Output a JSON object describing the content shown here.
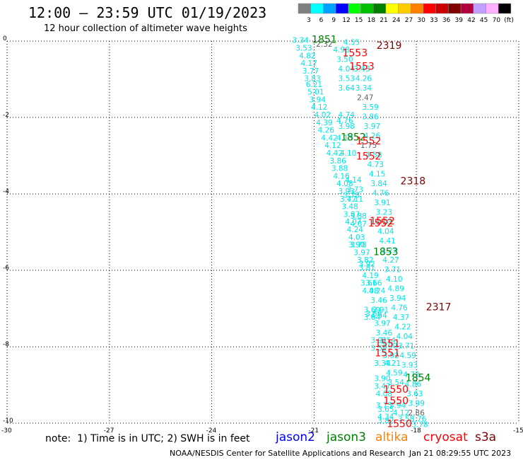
{
  "header": {
    "title": "12:00 – 23:59 UTC 01/19/2023",
    "subtitle": "12 hour collection of altimeter wave heights"
  },
  "scale": {
    "labels": [
      "3",
      "6",
      "9",
      "12",
      "15",
      "18",
      "21",
      "24",
      "27",
      "30",
      "33",
      "36",
      "39",
      "42",
      "45",
      "70",
      "(ft)"
    ],
    "colors": [
      "#808080",
      "#00ffff",
      "#00a0ff",
      "#0000ff",
      "#00ff00",
      "#00c000",
      "#008000",
      "#ffff00",
      "#ffcc00",
      "#ff8000",
      "#ff0000",
      "#cc0000",
      "#800000",
      "#b00040",
      "#c0a0ff",
      "#ffb0ff",
      "#000000"
    ]
  },
  "axes": {
    "x_ticks": [
      "-30",
      "-27",
      "-24",
      "-21",
      "-18",
      "-15"
    ],
    "y_ticks": [
      "0",
      "-2",
      "-4",
      "-6",
      "-8",
      "-10"
    ]
  },
  "chart_data": {
    "type": "scatter",
    "xlim": [
      -30,
      -15
    ],
    "ylim": [
      -10,
      0
    ],
    "grid": true,
    "points": [
      {
        "x": -21.4,
        "y": -0.05,
        "v": "3.34",
        "c": "#00e5e5"
      },
      {
        "x": -21.3,
        "y": -0.25,
        "v": "3.53",
        "c": "#00e5e5"
      },
      {
        "x": -21.2,
        "y": -0.45,
        "v": "4.82",
        "c": "#00e5e5"
      },
      {
        "x": -21.15,
        "y": -0.65,
        "v": "4.17",
        "c": "#00e5e5"
      },
      {
        "x": -21.1,
        "y": -0.85,
        "v": "3.77",
        "c": "#00e5e5"
      },
      {
        "x": -21.05,
        "y": -1.05,
        "v": "3.83",
        "c": "#00e5e5"
      },
      {
        "x": -21.0,
        "y": -1.2,
        "v": "6.21",
        "c": "#00e5e5"
      },
      {
        "x": -20.95,
        "y": -1.4,
        "v": "5.01",
        "c": "#00e5e5"
      },
      {
        "x": -20.9,
        "y": -1.6,
        "v": "3.94",
        "c": "#00e5e5"
      },
      {
        "x": -20.85,
        "y": -1.8,
        "v": "4.12",
        "c": "#00e5e5"
      },
      {
        "x": -20.75,
        "y": -2.0,
        "v": "4.02",
        "c": "#00e5e5"
      },
      {
        "x": -20.7,
        "y": -2.2,
        "v": "4.39",
        "c": "#00e5e5"
      },
      {
        "x": -20.65,
        "y": -2.4,
        "v": "4.26",
        "c": "#00e5e5"
      },
      {
        "x": -20.55,
        "y": -2.6,
        "v": "4.42",
        "c": "#00e5e5"
      },
      {
        "x": -20.45,
        "y": -2.8,
        "v": "4.12",
        "c": "#00e5e5"
      },
      {
        "x": -20.4,
        "y": -3.0,
        "v": "4.42",
        "c": "#00e5e5"
      },
      {
        "x": -20.3,
        "y": -3.2,
        "v": "3.86",
        "c": "#00e5e5"
      },
      {
        "x": -20.25,
        "y": -3.4,
        "v": "3.88",
        "c": "#00e5e5"
      },
      {
        "x": -20.2,
        "y": -3.6,
        "v": "4.16",
        "c": "#00e5e5"
      },
      {
        "x": -20.1,
        "y": -3.8,
        "v": "4.08",
        "c": "#00e5e5"
      },
      {
        "x": -20.05,
        "y": -4.0,
        "v": "3.93",
        "c": "#00e5e5"
      },
      {
        "x": -20.0,
        "y": -4.2,
        "v": "3.77",
        "c": "#00e5e5"
      },
      {
        "x": -19.95,
        "y": -4.4,
        "v": "3.48",
        "c": "#00e5e5"
      },
      {
        "x": -19.9,
        "y": -4.6,
        "v": "3.87",
        "c": "#00e5e5"
      },
      {
        "x": -19.85,
        "y": -4.8,
        "v": "4.07",
        "c": "#00e5e5"
      },
      {
        "x": -19.8,
        "y": -5.0,
        "v": "4.24",
        "c": "#00e5e5"
      },
      {
        "x": -19.75,
        "y": -5.2,
        "v": "4.03",
        "c": "#00e5e5"
      },
      {
        "x": -19.7,
        "y": -5.4,
        "v": "3.78",
        "c": "#00e5e5"
      },
      {
        "x": -19.6,
        "y": -5.6,
        "v": "3.97",
        "c": "#00e5e5"
      },
      {
        "x": -19.5,
        "y": -5.8,
        "v": "3.82",
        "c": "#00e5e5"
      },
      {
        "x": -19.45,
        "y": -6.0,
        "v": "3.81",
        "c": "#00e5e5"
      },
      {
        "x": -19.35,
        "y": -6.2,
        "v": "4.19",
        "c": "#00e5e5"
      },
      {
        "x": -19.4,
        "y": -6.4,
        "v": "3.61",
        "c": "#00e5e5"
      },
      {
        "x": -19.35,
        "y": -6.6,
        "v": "4.08",
        "c": "#00e5e5"
      },
      {
        "x": -19.3,
        "y": -7.1,
        "v": "3.69",
        "c": "#00e5e5"
      },
      {
        "x": -19.3,
        "y": -7.3,
        "v": "3.64",
        "c": "#00e5e5"
      },
      {
        "x": -19.1,
        "y": -7.9,
        "v": "3.91",
        "c": "#00e5e5"
      },
      {
        "x": -19.1,
        "y": -8.1,
        "v": "3.52",
        "c": "#00e5e5"
      },
      {
        "x": -19.0,
        "y": -8.5,
        "v": "3.34",
        "c": "#00e5e5"
      },
      {
        "x": -19.0,
        "y": -8.9,
        "v": "3.90",
        "c": "#00e5e5"
      },
      {
        "x": -19.0,
        "y": -9.1,
        "v": "3.47",
        "c": "#00e5e5"
      },
      {
        "x": -18.95,
        "y": -9.3,
        "v": "4.08",
        "c": "#00e5e5"
      },
      {
        "x": -18.95,
        "y": -9.6,
        "v": "3.75",
        "c": "#00e5e5"
      },
      {
        "x": -18.9,
        "y": -9.7,
        "v": "3.65",
        "c": "#00e5e5"
      },
      {
        "x": -18.9,
        "y": -9.9,
        "v": "4.34",
        "c": "#00e5e5"
      },
      {
        "x": -18.9,
        "y": -10.0,
        "v": "3.82",
        "c": "#00e5e5"
      },
      {
        "x": -19.9,
        "y": -0.1,
        "v": "4.55",
        "c": "#00e5e5"
      },
      {
        "x": -20.2,
        "y": -0.3,
        "v": "4.98",
        "c": "#00e5e5"
      },
      {
        "x": -20.1,
        "y": -0.55,
        "v": "3.50",
        "c": "#00e5e5"
      },
      {
        "x": -20.05,
        "y": -0.8,
        "v": "4.04",
        "c": "#00e5e5"
      },
      {
        "x": -20.05,
        "y": -1.05,
        "v": "3.53",
        "c": "#00e5e5"
      },
      {
        "x": -20.05,
        "y": -1.3,
        "v": "3.64",
        "c": "#00e5e5"
      },
      {
        "x": -19.6,
        "y": -0.8,
        "v": "3.43",
        "c": "#00e5e5"
      },
      {
        "x": -19.55,
        "y": -1.05,
        "v": "4.26",
        "c": "#00e5e5"
      },
      {
        "x": -19.55,
        "y": -1.3,
        "v": "3.34",
        "c": "#00e5e5"
      },
      {
        "x": -19.35,
        "y": -1.8,
        "v": "3.59",
        "c": "#00e5e5"
      },
      {
        "x": -19.35,
        "y": -2.05,
        "v": "3.86",
        "c": "#00e5e5"
      },
      {
        "x": -19.3,
        "y": -2.3,
        "v": "3.97",
        "c": "#00e5e5"
      },
      {
        "x": -19.3,
        "y": -2.55,
        "v": "4.26",
        "c": "#00e5e5"
      },
      {
        "x": -19.25,
        "y": -3.05,
        "v": "4.58",
        "c": "#00e5e5"
      },
      {
        "x": -19.2,
        "y": -3.3,
        "v": "4.73",
        "c": "#00e5e5"
      },
      {
        "x": -19.15,
        "y": -3.55,
        "v": "4.15",
        "c": "#00e5e5"
      },
      {
        "x": -19.1,
        "y": -3.8,
        "v": "3.84",
        "c": "#00e5e5"
      },
      {
        "x": -19.05,
        "y": -4.05,
        "v": "4.76",
        "c": "#00e5e5"
      },
      {
        "x": -19.0,
        "y": -4.3,
        "v": "3.91",
        "c": "#00e5e5"
      },
      {
        "x": -18.95,
        "y": -4.55,
        "v": "3.23",
        "c": "#00e5e5"
      },
      {
        "x": -18.95,
        "y": -4.8,
        "v": "4.03",
        "c": "#00e5e5"
      },
      {
        "x": -18.9,
        "y": -5.05,
        "v": "4.04",
        "c": "#00e5e5"
      },
      {
        "x": -18.85,
        "y": -5.3,
        "v": "4.41",
        "c": "#00e5e5"
      },
      {
        "x": -18.8,
        "y": -5.55,
        "v": "3.23",
        "c": "#00e5e5"
      },
      {
        "x": -18.75,
        "y": -5.8,
        "v": "4.27",
        "c": "#00e5e5"
      },
      {
        "x": -18.7,
        "y": -6.05,
        "v": "3.71",
        "c": "#00e5e5"
      },
      {
        "x": -18.65,
        "y": -6.3,
        "v": "4.10",
        "c": "#00e5e5"
      },
      {
        "x": -18.6,
        "y": -6.55,
        "v": "4.89",
        "c": "#00e5e5"
      },
      {
        "x": -18.55,
        "y": -6.8,
        "v": "3.94",
        "c": "#00e5e5"
      },
      {
        "x": -18.5,
        "y": -7.05,
        "v": "4.76",
        "c": "#00e5e5"
      },
      {
        "x": -18.45,
        "y": -7.3,
        "v": "4.37",
        "c": "#00e5e5"
      },
      {
        "x": -18.4,
        "y": -7.55,
        "v": "4.22",
        "c": "#00e5e5"
      },
      {
        "x": -18.35,
        "y": -7.8,
        "v": "4.04",
        "c": "#00e5e5"
      },
      {
        "x": -18.3,
        "y": -8.05,
        "v": "3.71",
        "c": "#00e5e5"
      },
      {
        "x": -18.25,
        "y": -8.3,
        "v": "4.59",
        "c": "#00e5e5"
      },
      {
        "x": -18.2,
        "y": -8.55,
        "v": "3.93",
        "c": "#00e5e5"
      },
      {
        "x": -18.15,
        "y": -8.8,
        "v": "4.73",
        "c": "#00e5e5"
      },
      {
        "x": -18.1,
        "y": -9.05,
        "v": "4.86",
        "c": "#00e5e5"
      },
      {
        "x": -18.05,
        "y": -9.3,
        "v": "3.63",
        "c": "#00e5e5"
      },
      {
        "x": -18.0,
        "y": -9.55,
        "v": "3.99",
        "c": "#00e5e5"
      },
      {
        "x": -17.95,
        "y": -9.95,
        "v": "3.76",
        "c": "#00e5e5"
      },
      {
        "x": -17.9,
        "y": -10.1,
        "v": "3.78",
        "c": "#00e5e5"
      },
      {
        "x": -20.05,
        "y": -2.0,
        "v": "4.74",
        "c": "#00e5e5"
      },
      {
        "x": -20.1,
        "y": -2.15,
        "v": "4.76",
        "c": "#00e5e5"
      },
      {
        "x": -20.05,
        "y": -2.3,
        "v": "3.98",
        "c": "#00e5e5"
      },
      {
        "x": -20.1,
        "y": -2.6,
        "v": "4.13",
        "c": "#00e5e5"
      },
      {
        "x": -20.0,
        "y": -3.0,
        "v": "4.10",
        "c": "#00e5e5"
      },
      {
        "x": -19.85,
        "y": -3.7,
        "v": "4.14",
        "c": "#00e5e5"
      },
      {
        "x": -19.8,
        "y": -3.95,
        "v": "3.73",
        "c": "#00e5e5"
      },
      {
        "x": -19.9,
        "y": -4.1,
        "v": "3.78",
        "c": "#00e5e5"
      },
      {
        "x": -19.8,
        "y": -4.2,
        "v": "4.11",
        "c": "#00e5e5"
      },
      {
        "x": -19.7,
        "y": -4.65,
        "v": "3.88",
        "c": "#00e5e5"
      },
      {
        "x": -19.7,
        "y": -4.85,
        "v": "4.07",
        "c": "#00e5e5"
      },
      {
        "x": -19.75,
        "y": -5.4,
        "v": "3.90",
        "c": "#00e5e5"
      },
      {
        "x": -19.45,
        "y": -5.9,
        "v": "3.92",
        "c": "#00e5e5"
      },
      {
        "x": -19.25,
        "y": -6.4,
        "v": "3.66",
        "c": "#00e5e5"
      },
      {
        "x": -19.15,
        "y": -6.6,
        "v": "4.24",
        "c": "#00e5e5"
      },
      {
        "x": -19.1,
        "y": -6.85,
        "v": "3.46",
        "c": "#00e5e5"
      },
      {
        "x": -19.05,
        "y": -7.1,
        "v": "3.91",
        "c": "#00e5e5"
      },
      {
        "x": -19.25,
        "y": -7.2,
        "v": "3.56",
        "c": "#00e5e5"
      },
      {
        "x": -19.1,
        "y": -7.25,
        "v": "4.54",
        "c": "#00e5e5"
      },
      {
        "x": -19.0,
        "y": -7.45,
        "v": "3.97",
        "c": "#00e5e5"
      },
      {
        "x": -18.95,
        "y": -7.7,
        "v": "3.46",
        "c": "#00e5e5"
      },
      {
        "x": -18.85,
        "y": -7.9,
        "v": "3.54",
        "c": "#00e5e5"
      },
      {
        "x": -18.8,
        "y": -8.05,
        "v": "3.90",
        "c": "#00e5e5"
      },
      {
        "x": -18.75,
        "y": -8.3,
        "v": "3.92",
        "c": "#00e5e5"
      },
      {
        "x": -18.7,
        "y": -8.5,
        "v": "4.21",
        "c": "#00e5e5"
      },
      {
        "x": -18.65,
        "y": -8.75,
        "v": "4.59",
        "c": "#00e5e5"
      },
      {
        "x": -18.6,
        "y": -9.0,
        "v": "3.54",
        "c": "#00e5e5"
      },
      {
        "x": -18.55,
        "y": -9.6,
        "v": "3.94",
        "c": "#00e5e5"
      },
      {
        "x": -18.45,
        "y": -9.8,
        "v": "4.12",
        "c": "#00e5e5"
      },
      {
        "x": -18.3,
        "y": -9.95,
        "v": "3.58",
        "c": "#00e5e5"
      },
      {
        "x": -20.7,
        "y": -0.15,
        "v": "2.32",
        "c": "#606060"
      },
      {
        "x": -19.5,
        "y": -1.55,
        "v": "2.47",
        "c": "#606060"
      },
      {
        "x": -19.4,
        "y": -2.8,
        "v": "1.75",
        "c": "#606060"
      },
      {
        "x": -18.0,
        "y": -9.8,
        "v": "2.86",
        "c": "#606060"
      }
    ],
    "passes": [
      {
        "x": -20.7,
        "y": -0.05,
        "label": "1851",
        "c": "#008000"
      },
      {
        "x": -19.8,
        "y": -0.4,
        "label": "1553",
        "c": "#ff0000"
      },
      {
        "x": -18.8,
        "y": -0.2,
        "label": "2319",
        "c": "#800000"
      },
      {
        "x": -19.6,
        "y": -0.75,
        "label": "1553",
        "c": "#ff0000"
      },
      {
        "x": -19.85,
        "y": -2.6,
        "label": "1852",
        "c": "#008000"
      },
      {
        "x": -19.4,
        "y": -2.7,
        "label": "1552",
        "c": "#ff0000"
      },
      {
        "x": -19.4,
        "y": -3.1,
        "label": "1552",
        "c": "#ff0000"
      },
      {
        "x": -18.1,
        "y": -3.75,
        "label": "2318",
        "c": "#800000"
      },
      {
        "x": -19.0,
        "y": -4.8,
        "label": "1552",
        "c": "#ff0000"
      },
      {
        "x": -19.05,
        "y": -4.85,
        "label": "1552",
        "c": "#ff0000"
      },
      {
        "x": -18.9,
        "y": -5.6,
        "label": "1853",
        "c": "#008000"
      },
      {
        "x": -17.35,
        "y": -7.05,
        "label": "2317",
        "c": "#800000"
      },
      {
        "x": -18.85,
        "y": -8.0,
        "label": "1551",
        "c": "#ff0000"
      },
      {
        "x": -18.85,
        "y": -8.25,
        "label": "1551",
        "c": "#ff0000"
      },
      {
        "x": -17.95,
        "y": -8.9,
        "label": "1854",
        "c": "#008000"
      },
      {
        "x": -18.6,
        "y": -9.2,
        "label": "1550",
        "c": "#ff0000"
      },
      {
        "x": -18.6,
        "y": -9.5,
        "label": "1550",
        "c": "#ff0000"
      },
      {
        "x": -18.5,
        "y": -10.1,
        "label": "1550",
        "c": "#ff0000"
      }
    ]
  },
  "footer": {
    "note": "note:  1) Time is in UTC; 2) SWH is in feet",
    "satellites": [
      {
        "name": "jason2",
        "color": "#0000ff"
      },
      {
        "name": "jason3",
        "color": "#008000"
      },
      {
        "name": "altika",
        "color": "#ff8000"
      },
      {
        "name": "cryosat",
        "color": "#ff0000"
      },
      {
        "name": "s3a",
        "color": "#800000"
      }
    ],
    "credit": "NOAA/NESDIS Center for Satellite Applications and Research",
    "timestamp": "Jan 21 08:29:55 UTC 2023"
  }
}
